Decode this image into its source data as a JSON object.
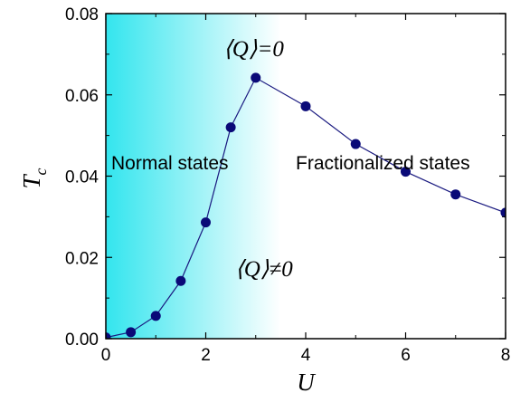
{
  "chart_data": {
    "type": "line",
    "xlabel": "U",
    "ylabel": "T",
    "ylabel_sub": "c",
    "xlim": [
      0,
      8
    ],
    "ylim": [
      0,
      0.08
    ],
    "x_ticks": [
      "0",
      "2",
      "4",
      "6",
      "8"
    ],
    "y_ticks": [
      "0.00",
      "0.02",
      "0.04",
      "0.06",
      "0.08"
    ],
    "grid": false,
    "series": [
      {
        "x": [
          0,
          0.5,
          1.0,
          1.5,
          2.0,
          2.5,
          3.0,
          4.0,
          5.0,
          6.0,
          7.0,
          8.0
        ],
        "y": [
          0.0003,
          0.0016,
          0.0056,
          0.0142,
          0.0286,
          0.052,
          0.0642,
          0.0572,
          0.0479,
          0.0411,
          0.0355,
          0.031
        ]
      }
    ],
    "shaded_region": {
      "x_from": 0,
      "x_to": 3.5,
      "color_from": "#33E5EE",
      "color_to": "#FFFFFF"
    },
    "annotations": {
      "normal": "Normal states",
      "fractional": "Fractionalized states",
      "q_zero": "⟨Q⟩=0",
      "q_nonzero": "⟨Q⟩≠0"
    },
    "colors": {
      "line": "#1a1a80",
      "marker": "#0a0a78"
    }
  }
}
